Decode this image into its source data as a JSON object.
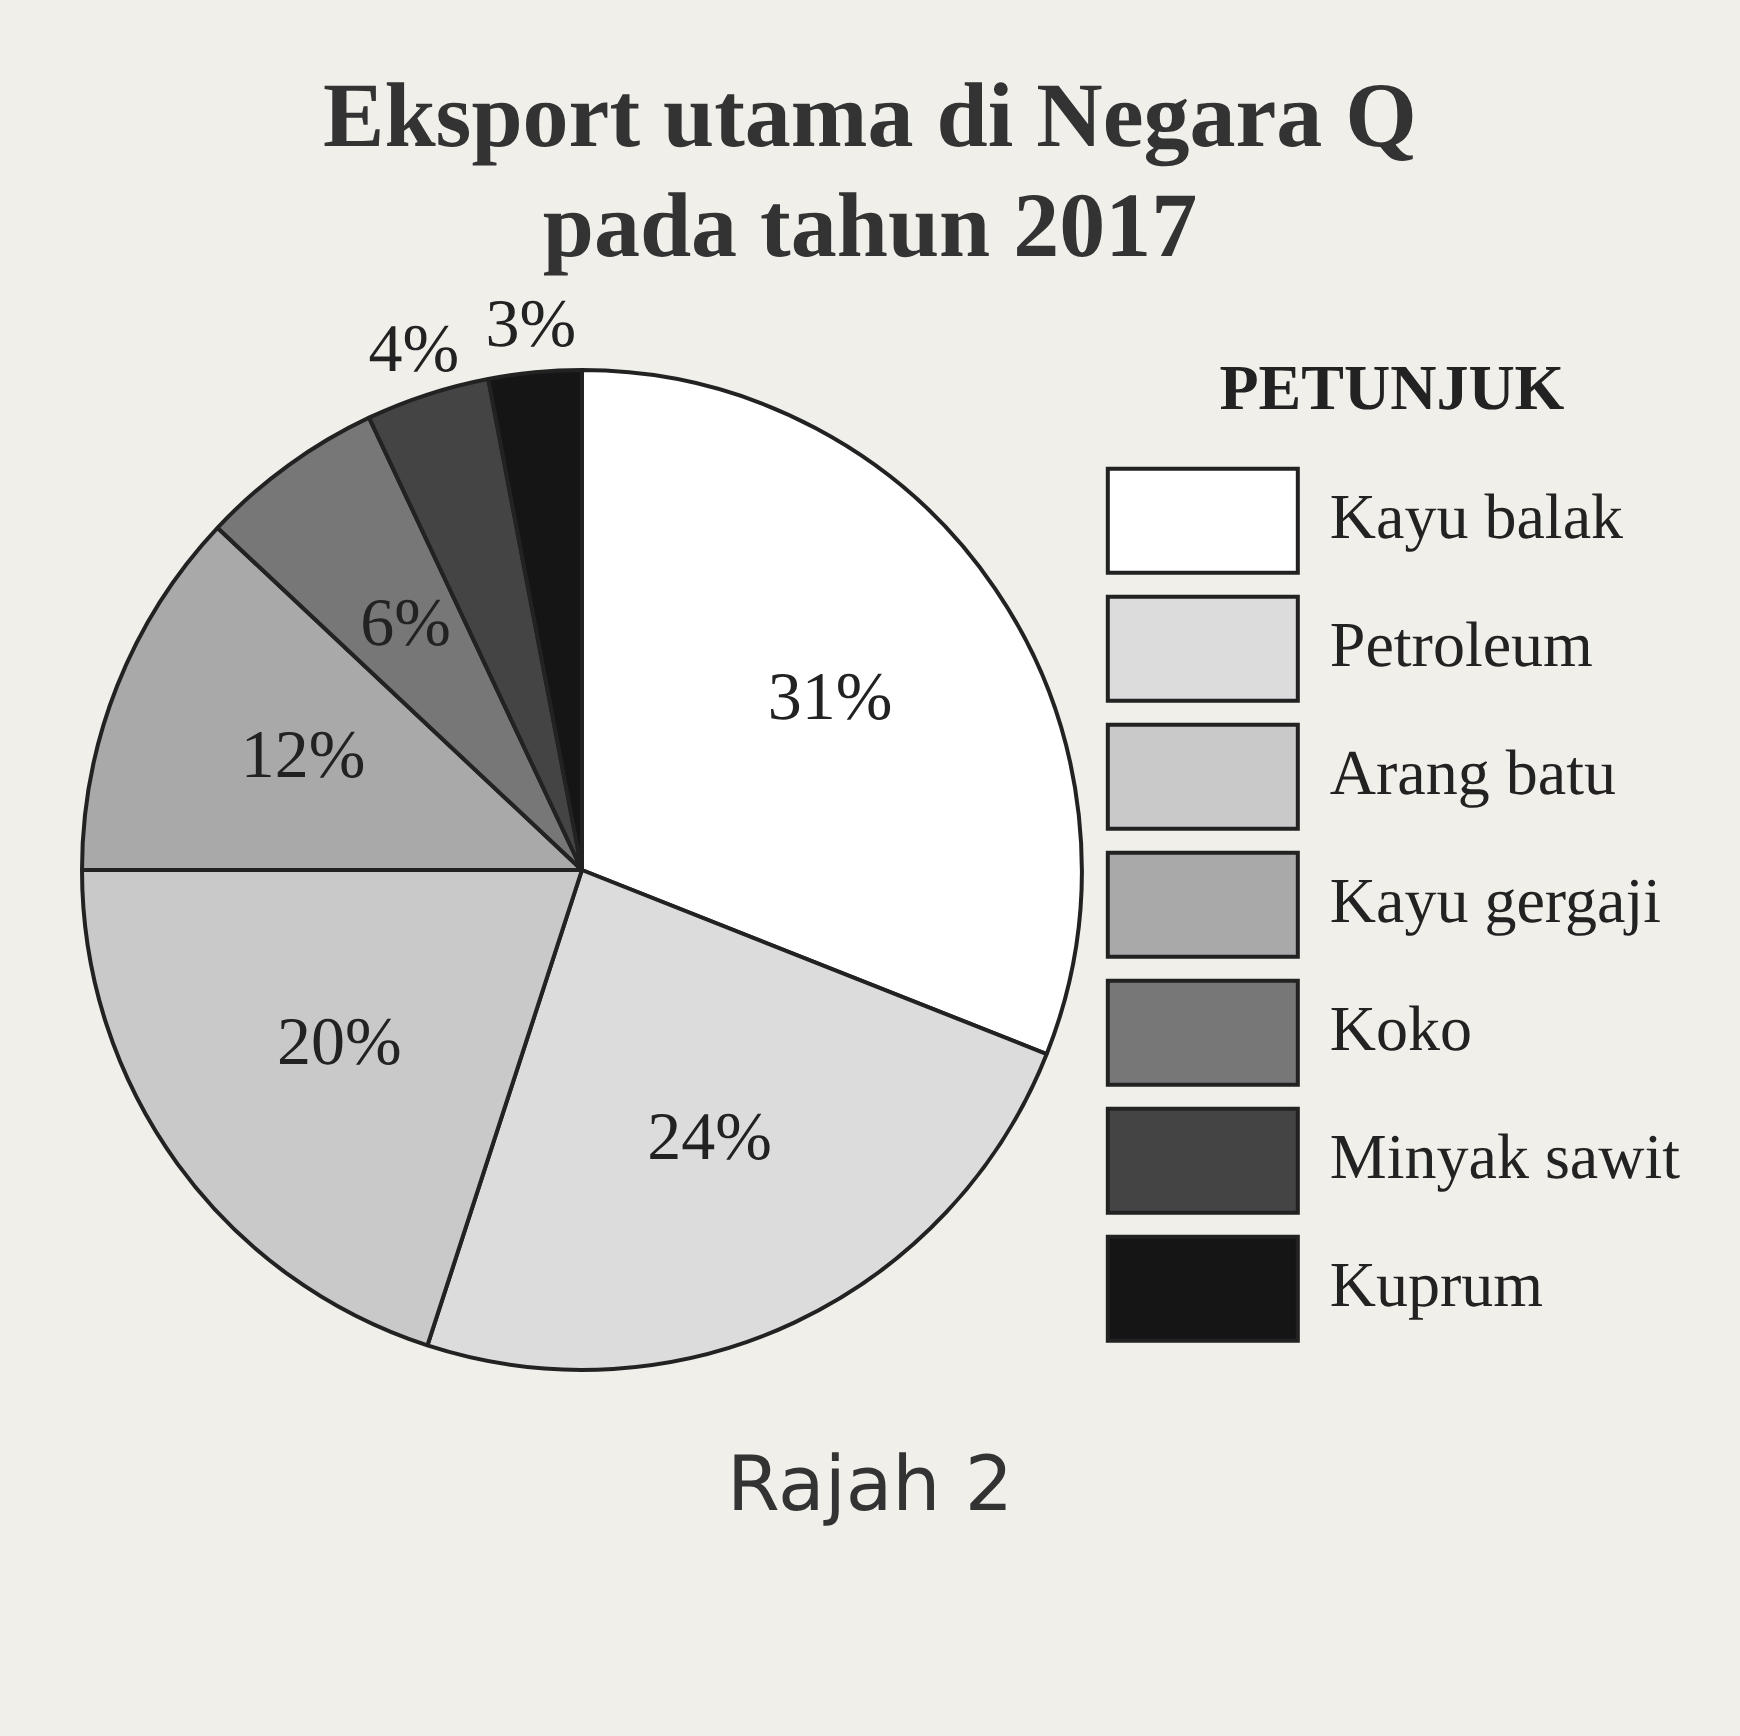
{
  "chart_data": {
    "type": "pie",
    "title": "Eksport utama di Negara Q pada tahun 2017",
    "legend_title": "PETUNJUK",
    "legend": "right",
    "categories": [
      "Kayu balak",
      "Petroleum",
      "Arang batu",
      "Kayu gergaji",
      "Koko",
      "Minyak sawit",
      "Kuprum"
    ],
    "values": [
      31,
      24,
      20,
      12,
      6,
      4,
      3
    ],
    "colors": [
      "#ffffff",
      "#dcdcdc",
      "#c9c9c9",
      "#a9a9a9",
      "#777777",
      "#444444",
      "#151515"
    ],
    "value_labels": [
      "31%",
      "24%",
      "20%",
      "12%",
      "6%",
      "4%",
      "3%"
    ],
    "annotations": [
      "Rajah 2"
    ]
  }
}
